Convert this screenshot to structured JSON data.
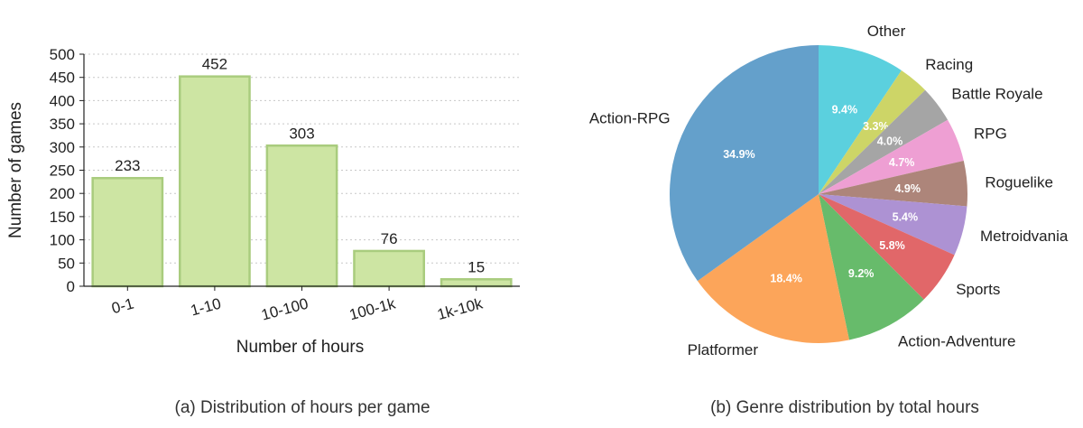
{
  "chart_data": [
    {
      "type": "bar",
      "caption": "(a) Distribution of hours per game",
      "xlabel": "Number of hours",
      "ylabel": "Number of games",
      "categories": [
        "0-1",
        "1-10",
        "10-100",
        "100-1k",
        "1k-10k"
      ],
      "values": [
        233,
        452,
        303,
        76,
        15
      ],
      "ylim": [
        0,
        500
      ],
      "yticks": [
        0,
        50,
        100,
        150,
        200,
        250,
        300,
        350,
        400,
        450,
        500
      ],
      "grid": "horizontal dotted",
      "bar_color": "#cde5a3",
      "bar_edge_color": "#a9cc7e"
    },
    {
      "type": "pie",
      "caption": "(b) Genre distribution by total hours",
      "slices": [
        {
          "label": "Other",
          "value": 9.4,
          "pct": "9.4%",
          "color": "#5bd0de"
        },
        {
          "label": "Racing",
          "value": 3.3,
          "pct": "3.3%",
          "color": "#cdd567"
        },
        {
          "label": "Battle Royale",
          "value": 4.0,
          "pct": "4.0%",
          "color": "#a5a5a5"
        },
        {
          "label": "RPG",
          "value": 4.7,
          "pct": "4.7%",
          "color": "#ee9fd3"
        },
        {
          "label": "Roguelike",
          "value": 4.9,
          "pct": "4.9%",
          "color": "#ad857a"
        },
        {
          "label": "Metroidvania",
          "value": 5.4,
          "pct": "5.4%",
          "color": "#ad92d3"
        },
        {
          "label": "Sports",
          "value": 5.8,
          "pct": "5.8%",
          "color": "#e16769"
        },
        {
          "label": "Action-Adventure",
          "value": 9.2,
          "pct": "9.2%",
          "color": "#67bb6b"
        },
        {
          "label": "Platformer",
          "value": 18.4,
          "pct": "18.4%",
          "color": "#fca55a"
        },
        {
          "label": "Action-RPG",
          "value": 34.9,
          "pct": "34.9%",
          "color": "#64a0cb"
        }
      ],
      "start": "top",
      "direction": "clockwise"
    }
  ]
}
